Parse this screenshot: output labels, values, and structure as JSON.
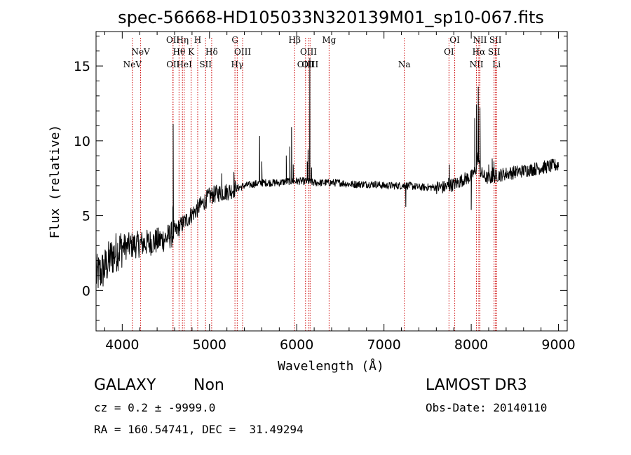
{
  "chart_data": {
    "type": "line",
    "title": "spec-56668-HD105033N320139M01_sp10-067.fits",
    "xlabel": "Wavelength (Å)",
    "ylabel": "Flux (relative)",
    "xlim": [
      3700,
      9100
    ],
    "ylim": [
      -2.7,
      17.3
    ],
    "x_ticks": [
      4000,
      5000,
      6000,
      7000,
      8000,
      9000
    ],
    "x_tick_labels": [
      "4000",
      "5000",
      "6000",
      "7000",
      "8000",
      "9000"
    ],
    "y_ticks": [
      0,
      5,
      10,
      15
    ],
    "y_tick_labels": [
      "0",
      "5",
      "10",
      "15"
    ],
    "grid": false,
    "line_color": "#000000",
    "marker_color": "#cc0000",
    "spectrum_anchors": {
      "x": [
        3700,
        3750,
        3800,
        3850,
        3900,
        3950,
        4000,
        4100,
        4200,
        4300,
        4400,
        4500,
        4560,
        4600,
        4650,
        4700,
        4750,
        4800,
        4850,
        4900,
        4950,
        5000,
        5100,
        5200,
        5300,
        5400,
        5500,
        5600,
        5700,
        5800,
        5900,
        6000,
        6100,
        6200,
        6300,
        6400,
        6500,
        6600,
        6700,
        6800,
        6900,
        7000,
        7100,
        7200,
        7250,
        7300,
        7400,
        7500,
        7600,
        7700,
        7750,
        7800,
        7850,
        7900,
        7950,
        8000,
        8050,
        8080,
        8100,
        8150,
        8200,
        8250,
        8300,
        8400,
        8500,
        8600,
        8700,
        8800,
        8900,
        9000
      ],
      "y": [
        1.0,
        1.2,
        1.5,
        2.0,
        2.4,
        2.7,
        2.9,
        3.0,
        3.1,
        3.2,
        3.3,
        3.5,
        3.7,
        3.9,
        4.2,
        4.5,
        4.8,
        5.1,
        5.4,
        5.7,
        6.0,
        6.3,
        6.5,
        6.6,
        6.8,
        7.0,
        7.1,
        7.2,
        7.2,
        7.2,
        7.3,
        7.3,
        7.3,
        7.2,
        7.2,
        7.2,
        7.2,
        7.1,
        7.1,
        7.1,
        7.1,
        7.0,
        7.0,
        7.0,
        7.0,
        7.0,
        6.9,
        6.9,
        6.9,
        6.9,
        7.0,
        7.1,
        7.2,
        7.4,
        7.5,
        7.6,
        8.0,
        9.0,
        8.0,
        7.6,
        7.5,
        7.6,
        7.7,
        7.8,
        7.9,
        8.0,
        8.1,
        8.2,
        8.3,
        8.4
      ]
    },
    "spectrum_features": {
      "x": [
        4560,
        4580,
        4584,
        5140,
        5280,
        5575,
        5600,
        5880,
        5920,
        5940,
        5960,
        6120,
        6130,
        6150,
        6170,
        7240,
        7250,
        7740,
        7750,
        7760,
        8000,
        8020,
        8040,
        8060,
        8080,
        8100,
        8200,
        8240,
        8250,
        8260,
        8270
      ],
      "y": [
        3.8,
        5.6,
        11.1,
        7.8,
        7.9,
        10.3,
        8.6,
        9.0,
        9.6,
        10.9,
        8.4,
        8.6,
        9.4,
        15.5,
        8.2,
        7.2,
        5.6,
        7.5,
        8.4,
        7.0,
        5.4,
        7.8,
        11.5,
        12.4,
        13.6,
        12.2,
        8.4,
        8.8,
        8.2,
        8.6,
        7.3
      ]
    },
    "line_markers": [
      {
        "wavelength": 4116,
        "label": "NeV",
        "row": 2
      },
      {
        "wavelength": 4211,
        "label": "NeV",
        "row": 1
      },
      {
        "wavelength": 4581,
        "label": "OII",
        "row": 0
      },
      {
        "wavelength": 4583,
        "label": "OII",
        "row": 2
      },
      {
        "wavelength": 4651,
        "label": "Hθ",
        "row": 1
      },
      {
        "wavelength": 4690,
        "label": "Hη",
        "row": 0
      },
      {
        "wavelength": 4710,
        "label": "HeI",
        "row": 2
      },
      {
        "wavelength": 4790,
        "label": "K",
        "row": 1
      },
      {
        "wavelength": 4865,
        "label": "H",
        "row": 0
      },
      {
        "wavelength": 4955,
        "label": "SII",
        "row": 2
      },
      {
        "wavelength": 5025,
        "label": "Hδ",
        "row": 1
      },
      {
        "wavelength": 5292,
        "label": "G",
        "row": 0
      },
      {
        "wavelength": 5318,
        "label": "Hγ",
        "row": 2
      },
      {
        "wavelength": 5380,
        "label": "OIII",
        "row": 1
      },
      {
        "wavelength": 5976,
        "label": "Hβ",
        "row": 0
      },
      {
        "wavelength": 6101,
        "label": "OIII",
        "row": 2
      },
      {
        "wavelength": 6135,
        "label": "OIII",
        "row": 1
      },
      {
        "wavelength": 6153,
        "label": "OIII",
        "row": 2
      },
      {
        "wavelength": 6371,
        "label": "Mg",
        "row": 0
      },
      {
        "wavelength": 7233,
        "label": "Na",
        "row": 2
      },
      {
        "wavelength": 7745,
        "label": "OI",
        "row": 1
      },
      {
        "wavelength": 7811,
        "label": "OI",
        "row": 0
      },
      {
        "wavelength": 8060,
        "label": "NII",
        "row": 2
      },
      {
        "wavelength": 8087,
        "label": "Hα",
        "row": 1
      },
      {
        "wavelength": 8100,
        "label": "NII",
        "row": 0
      },
      {
        "wavelength": 8262,
        "label": "SII",
        "row": 1
      },
      {
        "wavelength": 8278,
        "label": "SII",
        "row": 0
      },
      {
        "wavelength": 8290,
        "label": "Li",
        "row": 2
      }
    ]
  },
  "info": {
    "class_label": "GALAXY",
    "subclass_label": "Non",
    "survey_label": "LAMOST DR3",
    "cz_text": "cz = 0.2 ± -9999.0",
    "obs_date_text": "Obs-Date: 20140110",
    "coords_text": "RA = 160.54741, DEC =  31.49294"
  }
}
